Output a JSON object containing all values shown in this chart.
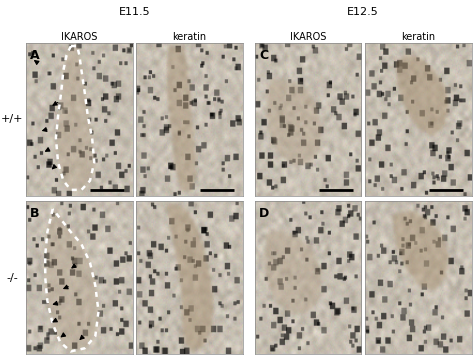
{
  "title_left": "E11.5",
  "title_right": "E12.5",
  "col_labels_left": [
    "IKAROS",
    "keratin"
  ],
  "col_labels_right": [
    "IKAROS",
    "keratin"
  ],
  "row_labels": [
    "+/+",
    "-/-"
  ],
  "panel_labels": [
    "A",
    "B",
    "C",
    "D"
  ],
  "background_color": "#ffffff",
  "text_color": "#000000",
  "label_fontsize": 7,
  "title_fontsize": 8,
  "panel_label_fontsize": 9,
  "row_label_fontsize": 8,
  "fig_width": 4.74,
  "fig_height": 3.58,
  "dpi": 100,
  "bg_base": [
    0.78,
    0.75,
    0.7
  ],
  "tissue_color_dark": [
    0.65,
    0.58,
    0.48
  ],
  "tissue_color_light": [
    0.72,
    0.66,
    0.56
  ],
  "cell_dot_color": [
    0.35,
    0.32,
    0.28
  ],
  "dotted_outline_color": "#ffffff",
  "arrow_color": "#000000",
  "scalebar_color": "#000000"
}
